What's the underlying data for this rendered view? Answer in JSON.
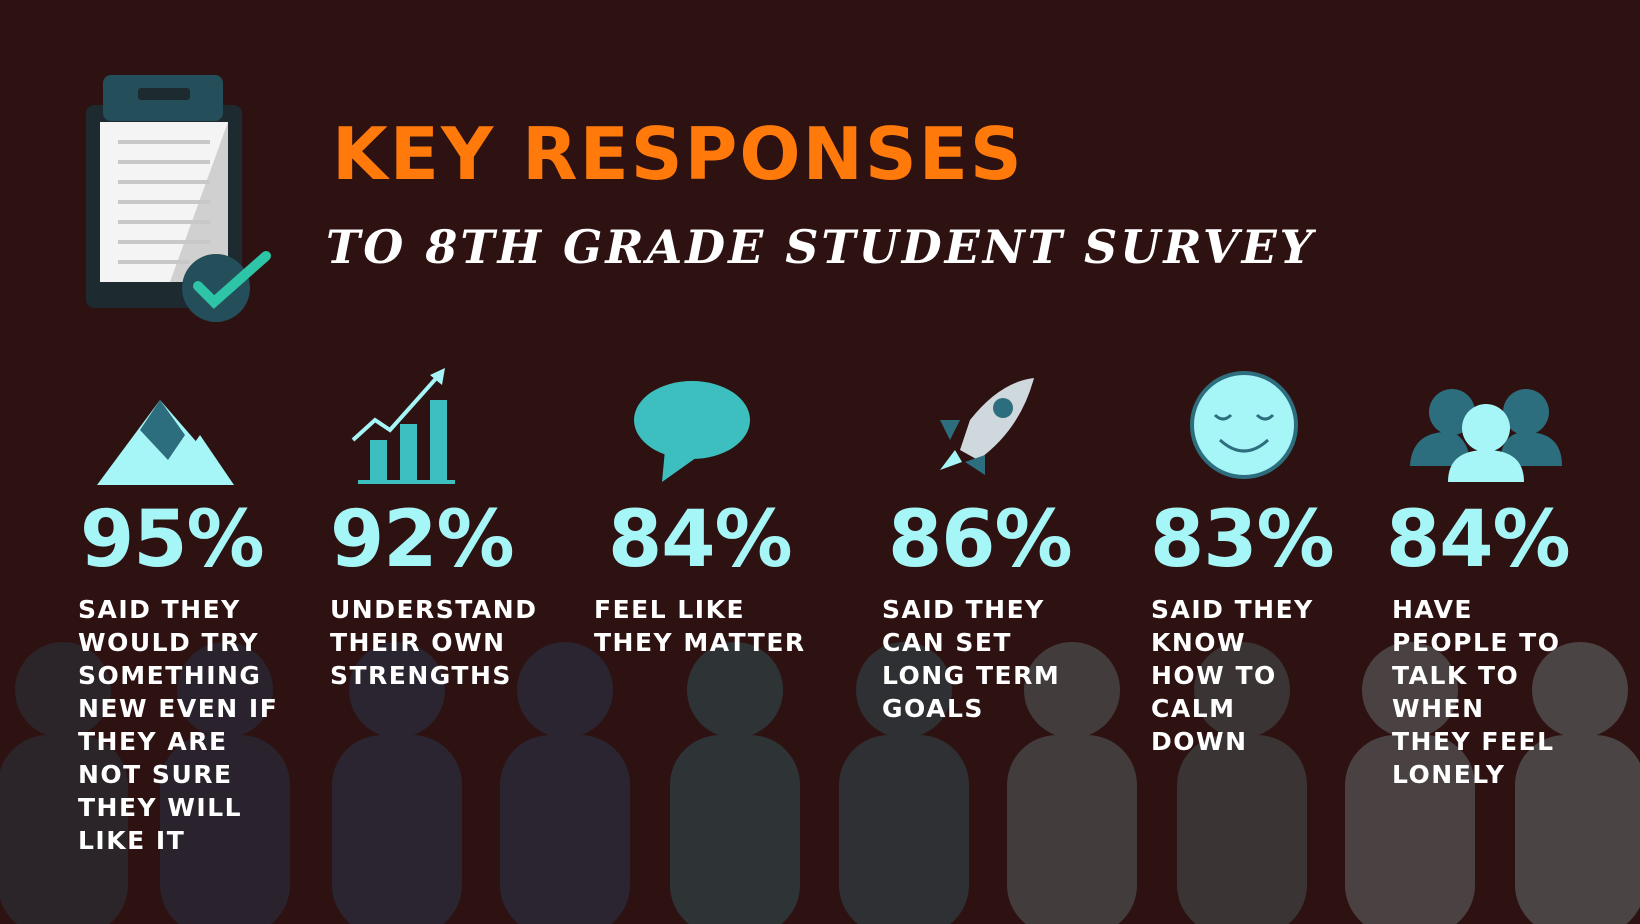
{
  "header": {
    "title": "KEY RESPONSES",
    "subtitle": "TO 8TH GRADE STUDENT SURVEY"
  },
  "stats": [
    {
      "value": "95%",
      "lines": [
        "SAID THEY",
        "WOULD TRY",
        "SOMETHING",
        "NEW EVEN IF",
        "THEY ARE",
        "NOT SURE",
        "THEY WILL",
        "LIKE IT"
      ]
    },
    {
      "value": "92%",
      "lines": [
        "UNDERSTAND",
        "THEIR OWN",
        "STRENGTHS"
      ]
    },
    {
      "value": "84%",
      "lines": [
        "FEEL LIKE",
        "THEY MATTER"
      ]
    },
    {
      "value": "86%",
      "lines": [
        "SAID THEY",
        "CAN SET",
        "LONG TERM",
        "GOALS"
      ]
    },
    {
      "value": "83%",
      "lines": [
        "SAID THEY",
        "KNOW",
        "HOW TO",
        "CALM",
        "DOWN"
      ]
    },
    {
      "value": "84%",
      "lines": [
        "HAVE",
        "PEOPLE TO",
        "TALK TO",
        "WHEN",
        "THEY FEEL",
        "LONELY"
      ]
    }
  ]
}
